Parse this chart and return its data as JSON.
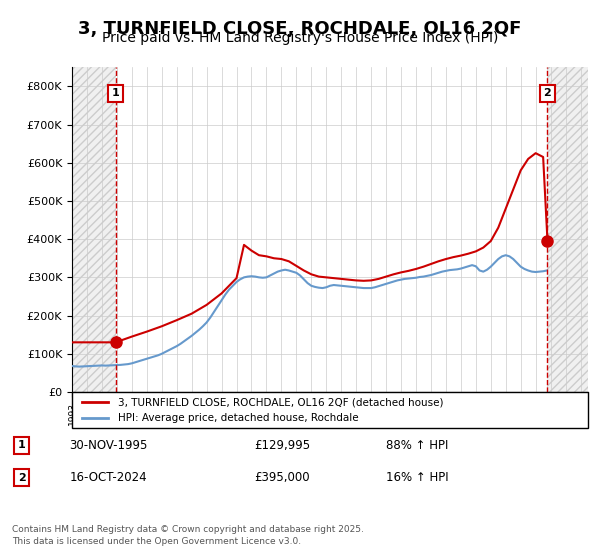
{
  "title": "3, TURNFIELD CLOSE, ROCHDALE, OL16 2QF",
  "subtitle": "Price paid vs. HM Land Registry's House Price Index (HPI)",
  "title_fontsize": 13,
  "subtitle_fontsize": 10,
  "background_color": "#ffffff",
  "plot_bg_color": "#ffffff",
  "grid_color": "#cccccc",
  "hatch_color": "#dddddd",
  "ylabel": "",
  "ylim": [
    0,
    850000
  ],
  "yticks": [
    0,
    100000,
    200000,
    300000,
    400000,
    500000,
    600000,
    700000,
    800000
  ],
  "ytick_labels": [
    "£0",
    "£100K",
    "£200K",
    "£300K",
    "£400K",
    "£500K",
    "£600K",
    "£700K",
    "£800K"
  ],
  "xlim_start": 1993.0,
  "xlim_end": 2027.5,
  "sale1_year": 1995.917,
  "sale1_price": 129995,
  "sale2_year": 2024.792,
  "sale2_price": 395000,
  "sale1_label": "1",
  "sale2_label": "2",
  "property_line_color": "#cc0000",
  "hpi_line_color": "#6699cc",
  "legend_label1": "3, TURNFIELD CLOSE, ROCHDALE, OL16 2QF (detached house)",
  "legend_label2": "HPI: Average price, detached house, Rochdale",
  "annotation1_date": "30-NOV-1995",
  "annotation1_price": "£129,995",
  "annotation1_hpi": "88% ↑ HPI",
  "annotation2_date": "16-OCT-2024",
  "annotation2_price": "£395,000",
  "annotation2_hpi": "16% ↑ HPI",
  "footer": "Contains HM Land Registry data © Crown copyright and database right 2025.\nThis data is licensed under the Open Government Licence v3.0.",
  "hpi_data_x": [
    1993.0,
    1993.25,
    1993.5,
    1993.75,
    1994.0,
    1994.25,
    1994.5,
    1994.75,
    1995.0,
    1995.25,
    1995.5,
    1995.75,
    1995.917,
    1996.0,
    1996.25,
    1996.5,
    1996.75,
    1997.0,
    1997.25,
    1997.5,
    1997.75,
    1998.0,
    1998.25,
    1998.5,
    1998.75,
    1999.0,
    1999.25,
    1999.5,
    1999.75,
    2000.0,
    2000.25,
    2000.5,
    2000.75,
    2001.0,
    2001.25,
    2001.5,
    2001.75,
    2002.0,
    2002.25,
    2002.5,
    2002.75,
    2003.0,
    2003.25,
    2003.5,
    2003.75,
    2004.0,
    2004.25,
    2004.5,
    2004.75,
    2005.0,
    2005.25,
    2005.5,
    2005.75,
    2006.0,
    2006.25,
    2006.5,
    2006.75,
    2007.0,
    2007.25,
    2007.5,
    2007.75,
    2008.0,
    2008.25,
    2008.5,
    2008.75,
    2009.0,
    2009.25,
    2009.5,
    2009.75,
    2010.0,
    2010.25,
    2010.5,
    2010.75,
    2011.0,
    2011.25,
    2011.5,
    2011.75,
    2012.0,
    2012.25,
    2012.5,
    2012.75,
    2013.0,
    2013.25,
    2013.5,
    2013.75,
    2014.0,
    2014.25,
    2014.5,
    2014.75,
    2015.0,
    2015.25,
    2015.5,
    2015.75,
    2016.0,
    2016.25,
    2016.5,
    2016.75,
    2017.0,
    2017.25,
    2017.5,
    2017.75,
    2018.0,
    2018.25,
    2018.5,
    2018.75,
    2019.0,
    2019.25,
    2019.5,
    2019.75,
    2020.0,
    2020.25,
    2020.5,
    2020.75,
    2021.0,
    2021.25,
    2021.5,
    2021.75,
    2022.0,
    2022.25,
    2022.5,
    2022.75,
    2023.0,
    2023.25,
    2023.5,
    2023.75,
    2024.0,
    2024.25,
    2024.5,
    2024.75
  ],
  "hpi_data_y": [
    68000,
    67000,
    66500,
    67000,
    67500,
    68000,
    68500,
    69000,
    69500,
    69000,
    69500,
    70000,
    70200,
    70500,
    71000,
    72000,
    73000,
    75000,
    78000,
    81000,
    84000,
    87000,
    90000,
    93000,
    96000,
    100000,
    105000,
    110000,
    115000,
    120000,
    126000,
    133000,
    140000,
    147000,
    155000,
    163000,
    172000,
    182000,
    195000,
    210000,
    225000,
    240000,
    255000,
    268000,
    278000,
    288000,
    295000,
    300000,
    302000,
    303000,
    302000,
    300000,
    299000,
    300000,
    305000,
    310000,
    315000,
    318000,
    320000,
    318000,
    315000,
    312000,
    305000,
    295000,
    285000,
    278000,
    275000,
    273000,
    272000,
    274000,
    278000,
    280000,
    279000,
    278000,
    277000,
    276000,
    275000,
    274000,
    273000,
    272000,
    272000,
    272000,
    274000,
    277000,
    280000,
    283000,
    286000,
    289000,
    292000,
    294000,
    296000,
    297000,
    298000,
    299000,
    301000,
    302000,
    304000,
    306000,
    309000,
    312000,
    315000,
    317000,
    319000,
    320000,
    321000,
    323000,
    326000,
    329000,
    332000,
    329000,
    318000,
    315000,
    320000,
    328000,
    338000,
    348000,
    355000,
    358000,
    355000,
    348000,
    338000,
    328000,
    322000,
    318000,
    315000,
    314000,
    315000,
    316000,
    318000
  ],
  "property_data_x": [
    1993.0,
    1995.917,
    1997.0,
    1998.0,
    1999.0,
    2000.0,
    2001.0,
    2002.0,
    2003.0,
    2004.0,
    2004.5,
    2005.0,
    2005.5,
    2006.0,
    2006.5,
    2007.0,
    2007.5,
    2008.0,
    2008.5,
    2009.0,
    2009.5,
    2010.0,
    2010.5,
    2011.0,
    2011.5,
    2012.0,
    2012.5,
    2013.0,
    2013.5,
    2014.0,
    2014.5,
    2015.0,
    2015.5,
    2016.0,
    2016.5,
    2017.0,
    2017.5,
    2018.0,
    2018.5,
    2019.0,
    2019.5,
    2020.0,
    2020.5,
    2021.0,
    2021.5,
    2022.0,
    2022.5,
    2023.0,
    2023.5,
    2024.0,
    2024.5,
    2024.792
  ],
  "property_data_y": [
    129995,
    129995,
    145000,
    158000,
    172000,
    188000,
    205000,
    228000,
    258000,
    298000,
    385000,
    370000,
    358000,
    355000,
    350000,
    348000,
    342000,
    330000,
    318000,
    308000,
    302000,
    300000,
    298000,
    296000,
    294000,
    292000,
    291000,
    292000,
    296000,
    302000,
    308000,
    313000,
    317000,
    322000,
    328000,
    335000,
    342000,
    348000,
    353000,
    357000,
    362000,
    368000,
    378000,
    395000,
    430000,
    480000,
    530000,
    580000,
    610000,
    625000,
    615000,
    395000
  ]
}
